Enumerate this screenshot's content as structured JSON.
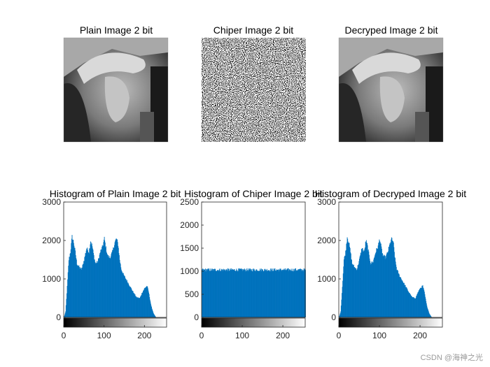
{
  "chart_data": [
    {
      "type": "image",
      "title": "Plain Image 2 bit"
    },
    {
      "type": "image",
      "title": "Chiper Image 2 bit"
    },
    {
      "type": "image",
      "title": "Decryped Image 2 bit"
    },
    {
      "type": "histogram",
      "title": "Histogram of Plain Image 2 bit",
      "xlim": [
        0,
        255
      ],
      "ylim": [
        0,
        3000
      ],
      "xticks": [
        0,
        100,
        200
      ],
      "yticks": [
        0,
        1000,
        2000,
        3000
      ],
      "profile": [
        [
          0,
          0
        ],
        [
          4,
          150
        ],
        [
          8,
          800
        ],
        [
          12,
          1500
        ],
        [
          16,
          1700
        ],
        [
          20,
          2100
        ],
        [
          24,
          1950
        ],
        [
          28,
          1700
        ],
        [
          32,
          1400
        ],
        [
          38,
          1300
        ],
        [
          44,
          1250
        ],
        [
          50,
          1500
        ],
        [
          56,
          1800
        ],
        [
          62,
          1700
        ],
        [
          66,
          2000
        ],
        [
          70,
          1850
        ],
        [
          74,
          1600
        ],
        [
          78,
          1400
        ],
        [
          84,
          1450
        ],
        [
          90,
          1700
        ],
        [
          96,
          1850
        ],
        [
          100,
          2050
        ],
        [
          104,
          1800
        ],
        [
          108,
          1600
        ],
        [
          114,
          1550
        ],
        [
          120,
          1700
        ],
        [
          126,
          1950
        ],
        [
          130,
          2050
        ],
        [
          134,
          1900
        ],
        [
          138,
          1500
        ],
        [
          142,
          1250
        ],
        [
          148,
          1100
        ],
        [
          156,
          950
        ],
        [
          164,
          800
        ],
        [
          172,
          650
        ],
        [
          180,
          520
        ],
        [
          188,
          500
        ],
        [
          194,
          650
        ],
        [
          200,
          760
        ],
        [
          206,
          820
        ],
        [
          210,
          650
        ],
        [
          216,
          300
        ],
        [
          222,
          100
        ],
        [
          228,
          0
        ],
        [
          255,
          0
        ]
      ]
    },
    {
      "type": "histogram",
      "title": "Histogram of Chiper Image 2 bit",
      "xlim": [
        0,
        255
      ],
      "ylim": [
        0,
        2500
      ],
      "xticks": [
        0,
        100,
        200
      ],
      "yticks": [
        0,
        500,
        1000,
        1500,
        2000,
        2500
      ],
      "profile": [
        [
          0,
          1030
        ],
        [
          255,
          1030
        ]
      ]
    },
    {
      "type": "histogram",
      "title": "Histogram of Decryped Image 2 bit",
      "xlim": [
        0,
        255
      ],
      "ylim": [
        0,
        3000
      ],
      "xticks": [
        0,
        100,
        200
      ],
      "yticks": [
        0,
        1000,
        2000,
        3000
      ],
      "profile": [
        [
          0,
          0
        ],
        [
          4,
          150
        ],
        [
          8,
          800
        ],
        [
          12,
          1500
        ],
        [
          16,
          1700
        ],
        [
          20,
          2100
        ],
        [
          24,
          1950
        ],
        [
          28,
          1700
        ],
        [
          32,
          1400
        ],
        [
          38,
          1300
        ],
        [
          44,
          1250
        ],
        [
          50,
          1500
        ],
        [
          56,
          1800
        ],
        [
          62,
          1700
        ],
        [
          66,
          2000
        ],
        [
          70,
          1850
        ],
        [
          74,
          1600
        ],
        [
          78,
          1400
        ],
        [
          84,
          1450
        ],
        [
          90,
          1700
        ],
        [
          96,
          1850
        ],
        [
          100,
          2050
        ],
        [
          104,
          1800
        ],
        [
          108,
          1600
        ],
        [
          114,
          1550
        ],
        [
          120,
          1700
        ],
        [
          126,
          1950
        ],
        [
          130,
          2050
        ],
        [
          134,
          1900
        ],
        [
          138,
          1500
        ],
        [
          142,
          1250
        ],
        [
          148,
          1100
        ],
        [
          156,
          950
        ],
        [
          164,
          800
        ],
        [
          172,
          650
        ],
        [
          180,
          520
        ],
        [
          188,
          500
        ],
        [
          194,
          650
        ],
        [
          200,
          760
        ],
        [
          206,
          820
        ],
        [
          210,
          650
        ],
        [
          216,
          300
        ],
        [
          222,
          100
        ],
        [
          228,
          0
        ],
        [
          255,
          0
        ]
      ]
    }
  ],
  "colors": {
    "bar": "#0072bd",
    "axis": "#262626"
  },
  "watermark": "CSDN @海神之光"
}
